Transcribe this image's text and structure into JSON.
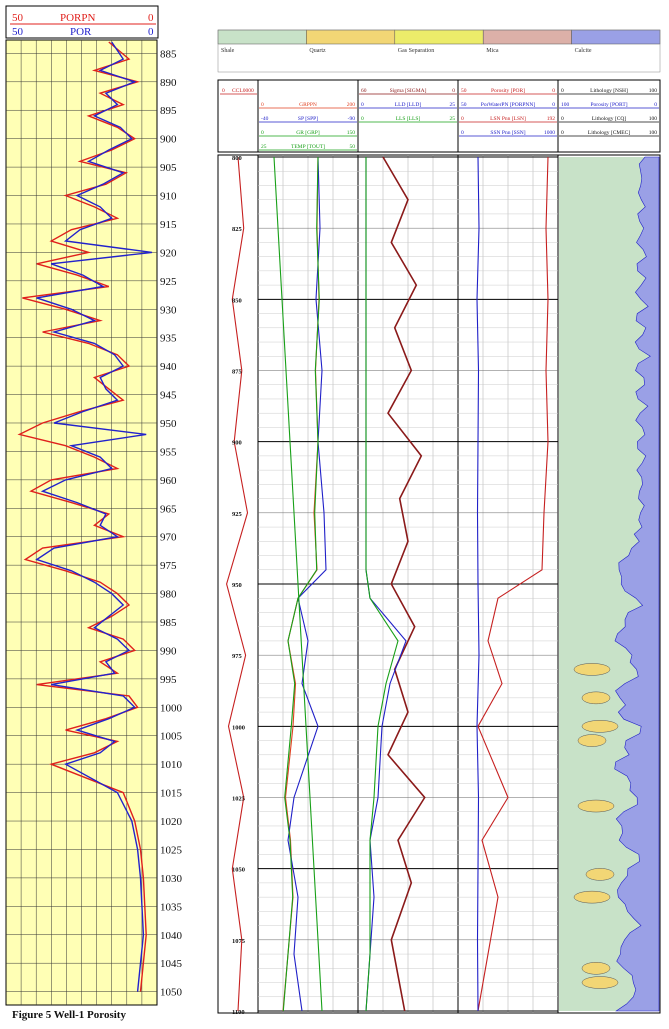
{
  "left_panel": {
    "porpn": {
      "left": "50",
      "name": "PORPN",
      "right": "0",
      "color": "#e0201c"
    },
    "por": {
      "left": "50",
      "name": "POR",
      "right": "0",
      "color": "#2222cc"
    },
    "depth_ticks": [
      "885",
      "890",
      "895",
      "900",
      "905",
      "910",
      "915",
      "920",
      "925",
      "930",
      "935",
      "940",
      "945",
      "950",
      "955",
      "960",
      "965",
      "970",
      "975",
      "980",
      "985",
      "990",
      "995",
      "1000",
      "1005",
      "1010",
      "1015",
      "1020",
      "1025",
      "1030",
      "1035",
      "1040",
      "1045",
      "1050"
    ],
    "background": "#ffffb5"
  },
  "caption": "Figure 5 Well-1 Porosity",
  "legend": [
    {
      "label": "Shale",
      "color": "#c8e2c8"
    },
    {
      "label": "Quartz",
      "color": "#f2d675"
    },
    {
      "label": "Gas Separation",
      "color": "#ecec6a"
    },
    {
      "label": "Mica",
      "color": "#dcb0a8"
    },
    {
      "label": "Calcite",
      "color": "#9aa0e6"
    }
  ],
  "track_headers": [
    {
      "curves": [
        {
          "left": "0",
          "name": "CCL0000",
          "right": "",
          "color": "#c62020"
        },
        {
          "left": "0",
          "name": "GRPPN",
          "right": "200",
          "color": "#e04020"
        },
        {
          "left": "-40",
          "name": "SP [SPP]",
          "right": "-90",
          "color": "#2020c8"
        },
        {
          "left": "0",
          "name": "GR [GRP]",
          "right": "150",
          "color": "#18a018"
        },
        {
          "left": "25",
          "name": "TEMP [TOUT]",
          "right": "50",
          "color": "#18a018"
        }
      ]
    },
    {
      "curves": [
        {
          "left": "60",
          "name": "Sigma [SIGMA]",
          "right": "0",
          "color": "#8b1a1a"
        },
        {
          "left": "0",
          "name": "LLD [LLD]",
          "right": "25",
          "color": "#2020c8"
        },
        {
          "left": "0",
          "name": "LLS [LLS]",
          "right": "25",
          "color": "#18a018"
        }
      ]
    },
    {
      "curves": [
        {
          "left": "50",
          "name": "Porosity [POR]",
          "right": "0",
          "color": "#c62020"
        },
        {
          "left": "50",
          "name": "PorWaterPN [PORPNN]",
          "right": "0",
          "color": "#2020c8"
        },
        {
          "left": "0",
          "name": "LSN Pnn [LSN]",
          "right": "192",
          "color": "#c62020"
        },
        {
          "left": "0",
          "name": "SSN Pnn [SSN]",
          "right": "1000",
          "color": "#2020c8"
        }
      ]
    },
    {
      "curves": [
        {
          "left": "0",
          "name": "Lithology [NSH]",
          "right": "100",
          "color": "#111111"
        },
        {
          "left": "100",
          "name": "Porosity [PORT]",
          "right": "0",
          "color": "#2020c8"
        },
        {
          "left": "0",
          "name": "Lithology [CQ]",
          "right": "100",
          "color": "#111111"
        },
        {
          "left": "0",
          "name": "Lithology [CMEC]",
          "right": "100",
          "color": "#111111"
        }
      ]
    }
  ],
  "depth_labels": [
    "800",
    "825",
    "850",
    "875",
    "900",
    "925",
    "950",
    "975",
    "1000",
    "1025",
    "1050",
    "1075",
    "1100"
  ],
  "chart_data": [
    {
      "type": "line",
      "ylim": [
        883,
        1052
      ],
      "xlim": [
        50,
        0
      ],
      "series": [
        {
          "name": "PORPN",
          "color": "#e0201c",
          "x": [
            15,
            8,
            20,
            5,
            18,
            10,
            22,
            12,
            6,
            14,
            25,
            9,
            16,
            30,
            20,
            12,
            28,
            35,
            22,
            40,
            26,
            15,
            45,
            30,
            18,
            38,
            22,
            12,
            8,
            20,
            15,
            10,
            25,
            38,
            46,
            30,
            20,
            12,
            35,
            42,
            28,
            15,
            20,
            10,
            38,
            44,
            30,
            18,
            12,
            8,
            14,
            22,
            10,
            6,
            18,
            12,
            40,
            8,
            5,
            16,
            30,
            12,
            20,
            35,
            10,
            6,
            4,
            3,
            2,
            4
          ],
          "y": [
            883,
            886,
            888,
            890,
            892,
            894,
            896,
            898,
            900,
            902,
            904,
            906,
            908,
            910,
            912,
            914,
            916,
            918,
            920,
            922,
            924,
            926,
            928,
            930,
            932,
            934,
            936,
            938,
            940,
            942,
            944,
            946,
            948,
            950,
            952,
            954,
            956,
            958,
            960,
            962,
            964,
            966,
            968,
            970,
            972,
            974,
            976,
            978,
            980,
            982,
            984,
            986,
            988,
            990,
            992,
            994,
            996,
            998,
            1000,
            1002,
            1004,
            1006,
            1008,
            1010,
            1015,
            1020,
            1025,
            1030,
            1040,
            1050
          ]
        },
        {
          "name": "POR",
          "color": "#2222cc",
          "x": [
            14,
            10,
            18,
            6,
            16,
            12,
            20,
            11,
            7,
            15,
            22,
            10,
            17,
            26,
            18,
            14,
            25,
            30,
            0,
            35,
            24,
            17,
            40,
            28,
            20,
            34,
            20,
            13,
            10,
            18,
            16,
            12,
            24,
            34,
            2,
            28,
            18,
            14,
            30,
            38,
            26,
            16,
            18,
            12,
            34,
            40,
            28,
            20,
            14,
            10,
            15,
            20,
            12,
            8,
            16,
            13,
            35,
            10,
            6,
            15,
            26,
            13,
            18,
            30,
            12,
            7,
            5,
            4,
            3,
            5
          ],
          "y": [
            883,
            886,
            888,
            890,
            892,
            894,
            896,
            898,
            900,
            902,
            904,
            906,
            908,
            910,
            912,
            914,
            916,
            918,
            920,
            922,
            924,
            926,
            928,
            930,
            932,
            934,
            936,
            938,
            940,
            942,
            944,
            946,
            948,
            950,
            952,
            954,
            956,
            958,
            960,
            962,
            964,
            966,
            968,
            970,
            972,
            974,
            976,
            978,
            980,
            982,
            984,
            986,
            988,
            990,
            992,
            994,
            996,
            998,
            1000,
            1002,
            1004,
            1006,
            1008,
            1010,
            1015,
            1020,
            1025,
            1030,
            1040,
            1050
          ]
        }
      ]
    },
    {
      "type": "line",
      "ylim": [
        800,
        1100
      ],
      "series": [
        {
          "name": "CCL0000",
          "color": "#c62020",
          "xlim": [
            -1,
            1
          ],
          "x": [
            0,
            0.3,
            -0.3,
            0.2,
            -0.2,
            0.5,
            -0.6,
            0.4,
            -0.5,
            0.3,
            -0.3,
            0.2,
            0
          ],
          "y": [
            800,
            825,
            850,
            875,
            900,
            925,
            950,
            975,
            1000,
            1025,
            1050,
            1075,
            1100
          ]
        },
        {
          "name": "GRPPN",
          "color": "#e04020",
          "xlim": [
            0,
            200
          ],
          "x": [
            120,
            118,
            122,
            115,
            120,
            112,
            118,
            80,
            60,
            75,
            70,
            55,
            65,
            70,
            60,
            50
          ],
          "y": [
            800,
            825,
            850,
            875,
            900,
            925,
            945,
            955,
            970,
            985,
            1000,
            1025,
            1040,
            1060,
            1080,
            1100
          ]
        },
        {
          "name": "SP [SPP]",
          "color": "#2020c8",
          "xlim": [
            -40,
            -90
          ],
          "x": [
            -70,
            -71,
            -69,
            -72,
            -70,
            -73,
            -74,
            -60,
            -65,
            -62,
            -70,
            -58,
            -55,
            -60,
            -58,
            -62
          ],
          "y": [
            800,
            825,
            850,
            875,
            900,
            925,
            945,
            955,
            970,
            985,
            1000,
            1025,
            1040,
            1060,
            1080,
            1100
          ]
        },
        {
          "name": "GR [GRP]",
          "color": "#18a018",
          "xlim": [
            0,
            150
          ],
          "x": [
            90,
            88,
            92,
            86,
            90,
            85,
            88,
            60,
            45,
            55,
            50,
            40,
            48,
            52,
            45,
            38
          ],
          "y": [
            800,
            825,
            850,
            875,
            900,
            925,
            945,
            955,
            970,
            985,
            1000,
            1025,
            1040,
            1060,
            1080,
            1100
          ]
        },
        {
          "name": "TEMP [TOUT]",
          "color": "#18a018",
          "xlim": [
            25,
            50
          ],
          "x": [
            29,
            30,
            31,
            32,
            33,
            34,
            35,
            36,
            37,
            38,
            39,
            40,
            41
          ],
          "y": [
            800,
            825,
            850,
            875,
            900,
            925,
            950,
            975,
            1000,
            1025,
            1050,
            1075,
            1100
          ]
        },
        {
          "name": "Sigma [SIGMA]",
          "color": "#8b1a1a",
          "xlim": [
            60,
            0
          ],
          "x": [
            45,
            30,
            40,
            25,
            38,
            28,
            42,
            22,
            35,
            30,
            40,
            26,
            38,
            30,
            42,
            20,
            36,
            28,
            40,
            32
          ],
          "y": [
            800,
            815,
            830,
            845,
            860,
            875,
            890,
            905,
            920,
            935,
            950,
            965,
            980,
            995,
            1010,
            1025,
            1040,
            1055,
            1075,
            1100
          ]
        },
        {
          "name": "LLD [LLD]",
          "color": "#2020c8",
          "xlim": [
            0,
            25
          ],
          "x": [
            2,
            2,
            2,
            2,
            2,
            2,
            2,
            3,
            12,
            8,
            6,
            5,
            3,
            4,
            3,
            2
          ],
          "y": [
            800,
            825,
            850,
            875,
            900,
            925,
            945,
            955,
            970,
            985,
            1000,
            1025,
            1040,
            1060,
            1080,
            1100
          ]
        },
        {
          "name": "LLS [LLS]",
          "color": "#18a018",
          "xlim": [
            0,
            25
          ],
          "x": [
            2,
            2,
            2,
            2,
            2,
            2,
            2,
            3,
            10,
            7,
            5,
            4,
            3,
            3,
            3,
            2
          ],
          "y": [
            800,
            825,
            850,
            875,
            900,
            925,
            945,
            955,
            970,
            985,
            1000,
            1025,
            1040,
            1060,
            1080,
            1100
          ]
        },
        {
          "name": "Porosity [POR]",
          "color": "#c62020",
          "xlim": [
            50,
            0
          ],
          "x": [
            5,
            6,
            5,
            6,
            5,
            7,
            8,
            30,
            35,
            28,
            40,
            25,
            38,
            30,
            35,
            40
          ],
          "y": [
            800,
            825,
            850,
            875,
            900,
            925,
            945,
            955,
            970,
            985,
            1000,
            1025,
            1040,
            1060,
            1080,
            1100
          ]
        },
        {
          "name": "SSN Pnn [SSN]",
          "color": "#2020c8",
          "xlim": [
            0,
            1000
          ],
          "x": [
            200,
            210,
            190,
            205,
            200,
            195,
            200,
            210,
            190,
            205,
            200,
            195,
            200
          ],
          "y": [
            800,
            825,
            850,
            875,
            900,
            925,
            950,
            975,
            1000,
            1025,
            1050,
            1075,
            1100
          ]
        }
      ]
    }
  ]
}
